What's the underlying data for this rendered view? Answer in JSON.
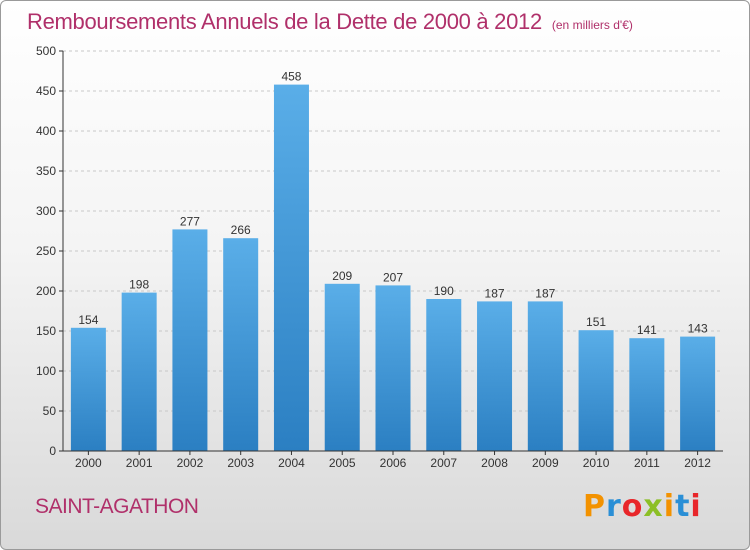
{
  "title": "Remboursements Annuels de la Dette de 2000 à 2012",
  "subtitle": "(en milliers d'€)",
  "commune": "SAINT-AGATHON",
  "brand": "Proxiti",
  "colors": {
    "bar_top": "#5aaee8",
    "bar_bottom": "#2b7fc2",
    "title": "#b0306a"
  },
  "chart_data": {
    "type": "bar",
    "categories": [
      "2000",
      "2001",
      "2002",
      "2003",
      "2004",
      "2005",
      "2006",
      "2007",
      "2008",
      "2009",
      "2010",
      "2011",
      "2012"
    ],
    "values": [
      154,
      198,
      277,
      266,
      458,
      209,
      207,
      190,
      187,
      187,
      151,
      141,
      143
    ],
    "ylim": [
      0,
      500
    ],
    "yticks": [
      0,
      50,
      100,
      150,
      200,
      250,
      300,
      350,
      400,
      450,
      500
    ],
    "grid": true,
    "xlabel": "",
    "ylabel": ""
  }
}
